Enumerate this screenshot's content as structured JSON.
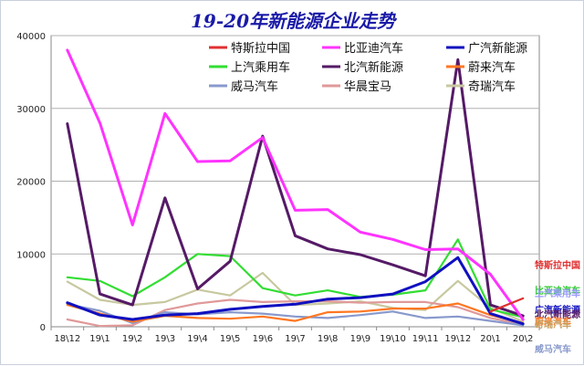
{
  "chart_data": {
    "type": "line",
    "title": "19-20年新能源企业走势",
    "xlabel": "",
    "ylabel": "",
    "ylim": [
      0,
      40000
    ],
    "yticks": [
      0,
      10000,
      20000,
      30000,
      40000
    ],
    "grid": true,
    "legend_position": "top",
    "categories": [
      "18\\12",
      "19\\1",
      "19\\2",
      "19\\3",
      "19\\4",
      "19\\5",
      "19\\6",
      "19\\7",
      "19\\8",
      "19\\9",
      "19\\10",
      "19\\11",
      "19\\12",
      "20\\1",
      "20\\2"
    ],
    "series": [
      {
        "name": "特斯拉中国",
        "color": "#e03030",
        "values": [
          null,
          null,
          null,
          null,
          null,
          null,
          null,
          null,
          null,
          null,
          null,
          null,
          null,
          2100,
          3900
        ]
      },
      {
        "name": "比亚迪汽车",
        "color": "#ff33ff",
        "values": [
          38000,
          28000,
          14000,
          29300,
          22700,
          22800,
          26000,
          16000,
          16100,
          13000,
          12000,
          10600,
          10700,
          7200,
          1000
        ]
      },
      {
        "name": "广汽新能源",
        "color": "#1010c0",
        "values": [
          3300,
          1600,
          1000,
          1600,
          1800,
          2400,
          2800,
          3100,
          3800,
          4000,
          4500,
          6200,
          9500,
          1800,
          400
        ]
      },
      {
        "name": "上汽乘用车",
        "color": "#33dd33",
        "values": [
          6800,
          6300,
          4200,
          6800,
          10000,
          9700,
          5300,
          4300,
          5000,
          4100,
          4400,
          5000,
          12000,
          2400,
          1300
        ]
      },
      {
        "name": "北汽新能源",
        "color": "#551a66",
        "values": [
          27900,
          4500,
          3000,
          17700,
          5200,
          9000,
          26200,
          12500,
          10700,
          9900,
          8500,
          7000,
          36700,
          3000,
          1500
        ]
      },
      {
        "name": "蔚来汽车",
        "color": "#ff7722",
        "values": [
          3000,
          1800,
          700,
          1500,
          1200,
          1100,
          1400,
          800,
          2000,
          2100,
          2500,
          2500,
          3200,
          1600,
          500
        ]
      },
      {
        "name": "威马汽车",
        "color": "#8899cc",
        "values": [
          3100,
          2200,
          500,
          2000,
          1700,
          2000,
          1800,
          1400,
          1200,
          1600,
          2100,
          1200,
          1400,
          800,
          200
        ]
      },
      {
        "name": "华晨宝马",
        "color": "#e09999",
        "values": [
          1000,
          100,
          200,
          2300,
          3200,
          3700,
          3400,
          3500,
          3500,
          3300,
          3400,
          3400,
          2700,
          1200,
          300
        ]
      },
      {
        "name": "奇瑞汽车",
        "color": "#c8c8a0",
        "values": [
          6200,
          3700,
          3000,
          3400,
          5100,
          4300,
          7400,
          3000,
          3200,
          3500,
          2600,
          2300,
          6300,
          2600,
          700
        ]
      }
    ],
    "end_labels": [
      {
        "text": "特斯拉中国",
        "color": "#e03030"
      },
      {
        "text": "比亚迪汽车",
        "color": "#33cc33"
      },
      {
        "text": "上汽乘用车",
        "color": "#9999ff"
      },
      {
        "text": "广汽新能源",
        "color": "#1010c0"
      },
      {
        "text": "北汽新能源",
        "color": "#551a66"
      },
      {
        "text": "蔚来汽车",
        "color": "#ff7722"
      },
      {
        "text": "奇瑞汽车",
        "color": "#c8a060"
      },
      {
        "text": "威马汽车",
        "color": "#8899cc"
      }
    ]
  }
}
